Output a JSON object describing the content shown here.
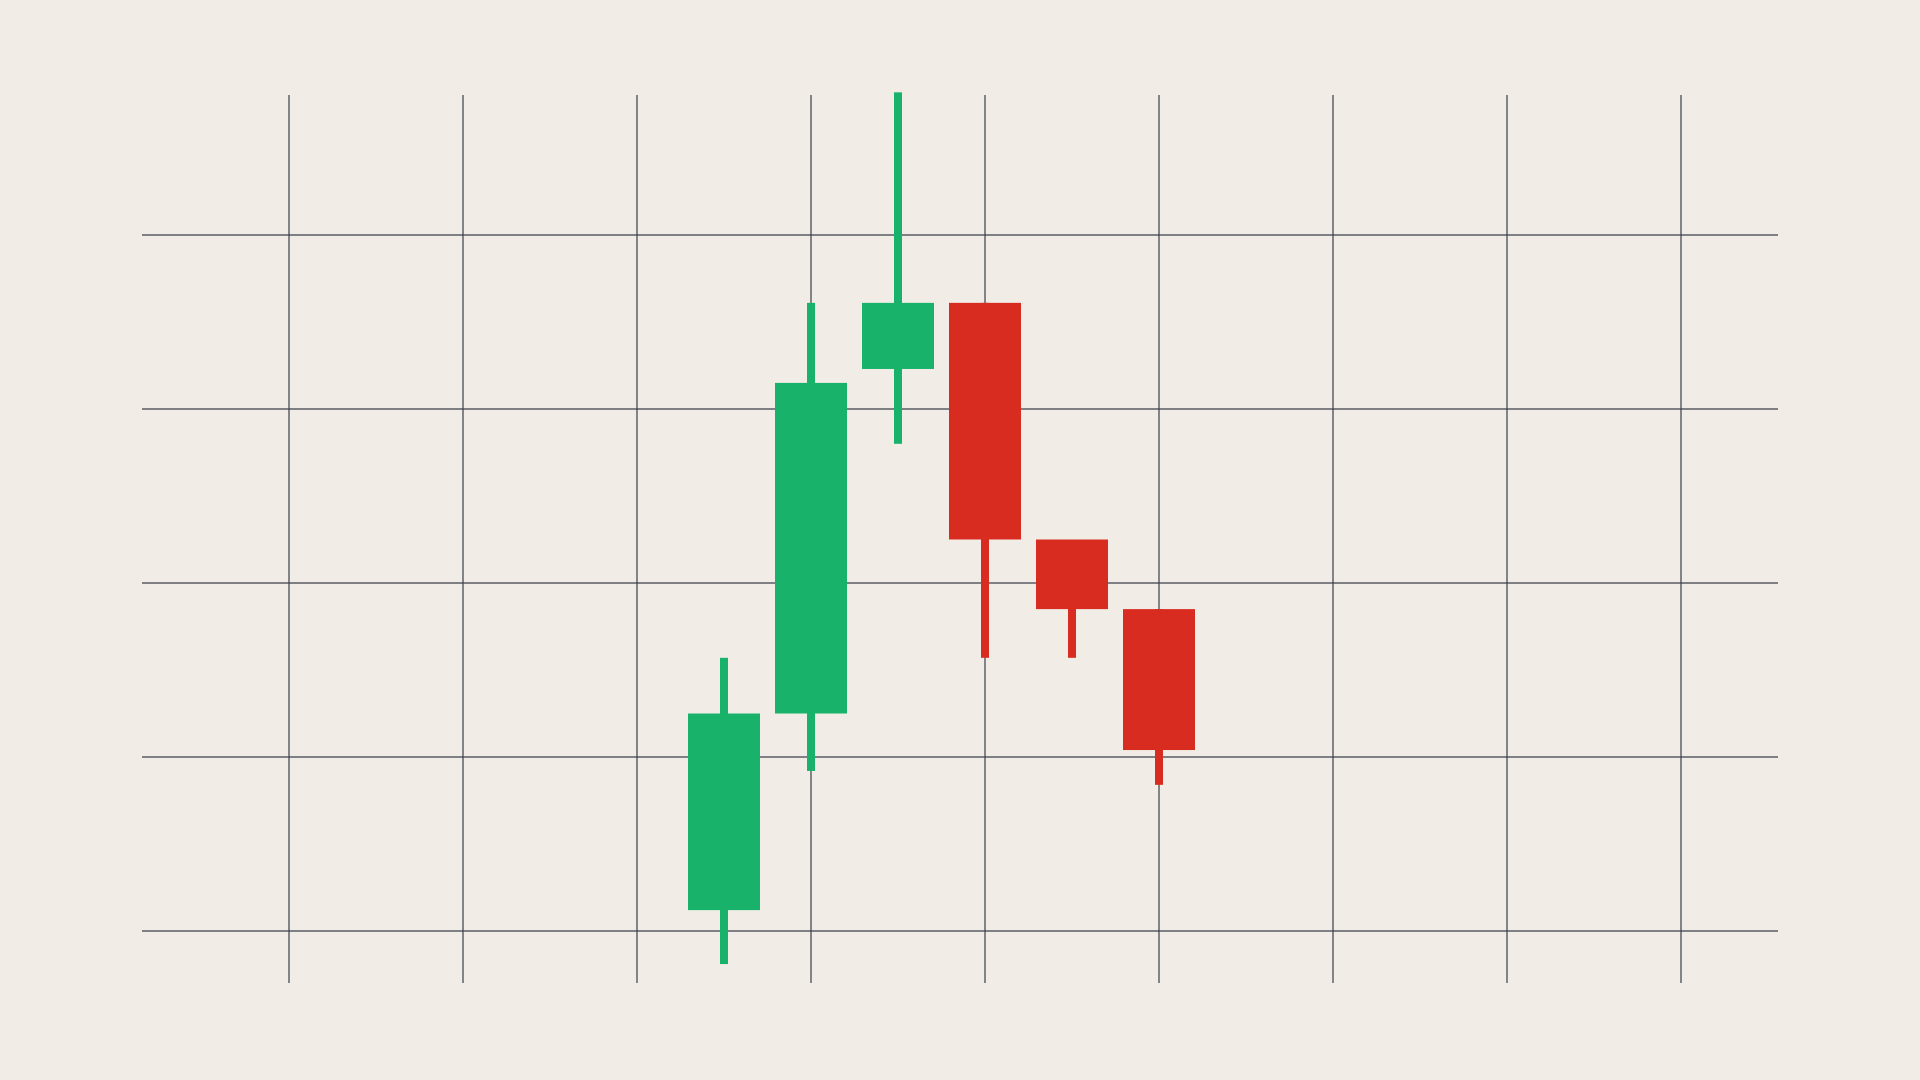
{
  "colors": {
    "background": "#f1ede6",
    "grid": "#3a3f4a",
    "bullish": "#18b26b",
    "bearish": "#d92c21"
  },
  "chart_data": {
    "type": "candlestick",
    "title": "",
    "xlabel": "",
    "ylabel": "",
    "grid": true,
    "x_gridlines": 9,
    "y_gridlines": 5,
    "x_range": [
      0,
      18
    ],
    "y_range": [
      0,
      4
    ],
    "candles": [
      {
        "x": 6.0,
        "open": 0.12,
        "close": 1.25,
        "high": 1.57,
        "low": -0.19,
        "direction": "up"
      },
      {
        "x": 7.0,
        "open": 1.25,
        "close": 3.15,
        "high": 3.61,
        "low": 0.92,
        "direction": "up"
      },
      {
        "x": 8.0,
        "open": 3.23,
        "close": 3.61,
        "high": 4.82,
        "low": 2.8,
        "direction": "up"
      },
      {
        "x": 9.0,
        "open": 3.61,
        "close": 2.25,
        "high": 3.61,
        "low": 1.57,
        "direction": "down"
      },
      {
        "x": 10.0,
        "open": 2.25,
        "close": 1.85,
        "high": 2.25,
        "low": 1.57,
        "direction": "down"
      },
      {
        "x": 11.0,
        "open": 1.85,
        "close": 1.04,
        "high": 1.85,
        "low": 0.84,
        "direction": "down"
      }
    ]
  }
}
